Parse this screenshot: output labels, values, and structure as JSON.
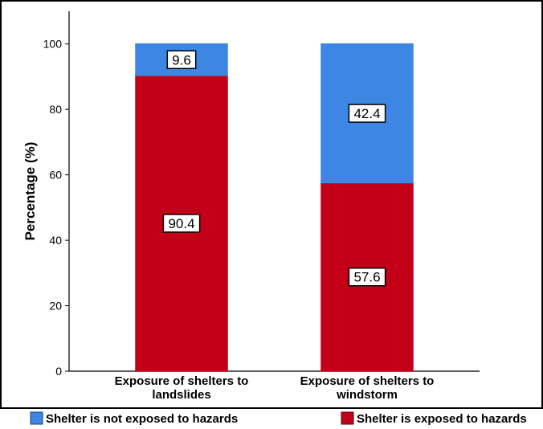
{
  "chart_data": {
    "type": "bar",
    "stacked": true,
    "categories": [
      [
        "Exposure of shelters to",
        "landslides"
      ],
      [
        "Exposure of shelters to",
        "windstorm"
      ]
    ],
    "series": [
      {
        "name": "Shelter is exposed to hazards",
        "values": [
          90.4,
          57.6
        ],
        "color": "#c40019",
        "labels": [
          "90.4",
          "57.6"
        ]
      },
      {
        "name": "Shelter is not exposed to hazards",
        "values": [
          9.6,
          42.4
        ],
        "color": "#3d86e3",
        "labels": [
          "9.6",
          "42.4"
        ]
      }
    ],
    "ylabel": "Percentage (%)",
    "xlabel": "",
    "ylim": [
      0,
      110
    ],
    "yticks": [
      "0",
      "20",
      "40",
      "60",
      "80",
      "100"
    ],
    "grid": false,
    "legend": {
      "position": "bottom",
      "entries": [
        {
          "label": "Shelter is not exposed to hazards",
          "color": "#3d86e3"
        },
        {
          "label": "Shelter is exposed to hazards",
          "color": "#c40019"
        }
      ]
    }
  }
}
